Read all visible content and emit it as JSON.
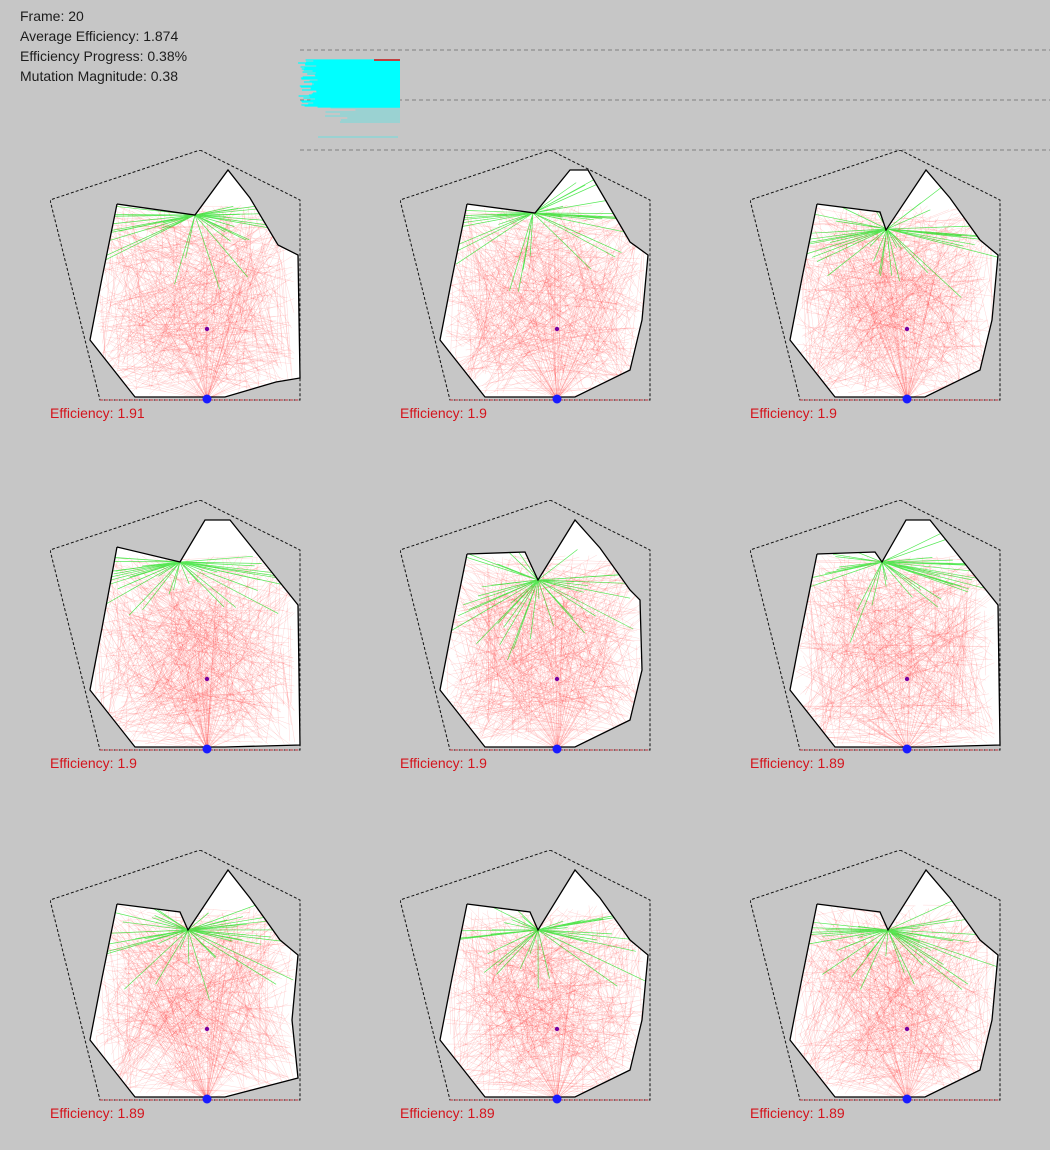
{
  "stats": {
    "frame_label": "Frame:",
    "frame": "20",
    "avg_label": "Average Efficiency:",
    "avg": "1.874",
    "progress_label": "Efficiency Progress:",
    "progress": "0.38%",
    "mutation_label": "Mutation Magnitude:",
    "mutation": "0.38"
  },
  "colors": {
    "background": "#c6c6c6",
    "ray_miss": "#ff2020",
    "ray_hit": "#10e010",
    "history_bar": "#00ffff",
    "source": "#1a1aff",
    "center": "#7a00a0",
    "efficiency_text": "#d4141c"
  },
  "efficiency_label": "Efficiency:",
  "variants": [
    {
      "efficiency": "1.91"
    },
    {
      "efficiency": "1.9"
    },
    {
      "efficiency": "1.9"
    },
    {
      "efficiency": "1.9"
    },
    {
      "efficiency": "1.9"
    },
    {
      "efficiency": "1.89"
    },
    {
      "efficiency": "1.89"
    },
    {
      "efficiency": "1.89"
    },
    {
      "efficiency": "1.89"
    }
  ]
}
